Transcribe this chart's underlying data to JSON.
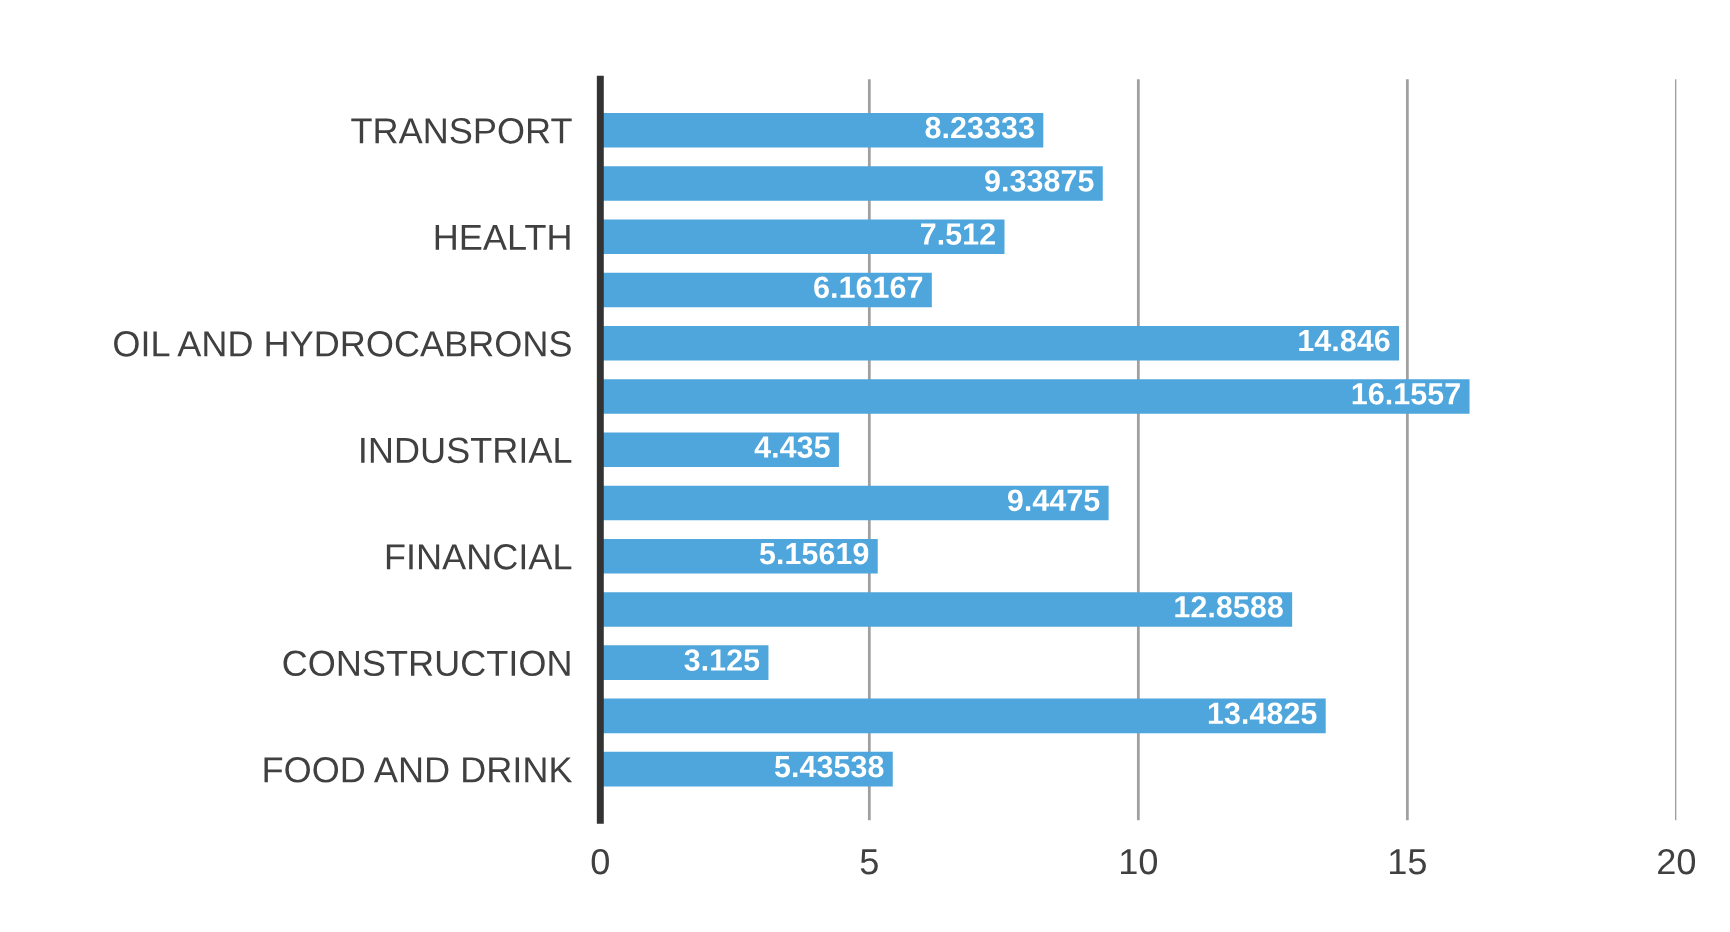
{
  "chart_data": {
    "type": "bar",
    "orientation": "horizontal",
    "categories": [
      "TRANSPORT",
      null,
      "HEALTH",
      null,
      "OIL AND HYDROCABRONS",
      null,
      "INDUSTRIAL",
      null,
      "FINANCIAL",
      null,
      "CONSTRUCTION",
      null,
      "FOOD AND DRINK"
    ],
    "values": [
      8.23333,
      9.33875,
      7.512,
      6.16167,
      14.846,
      16.1557,
      4.435,
      9.4475,
      5.15619,
      12.8588,
      3.125,
      13.4825,
      5.43538
    ],
    "color": "#4ea6dc",
    "xlim": [
      0,
      20
    ],
    "xticks": [
      0,
      5,
      10,
      15,
      20
    ],
    "grid": "x",
    "data_labels": true
  }
}
